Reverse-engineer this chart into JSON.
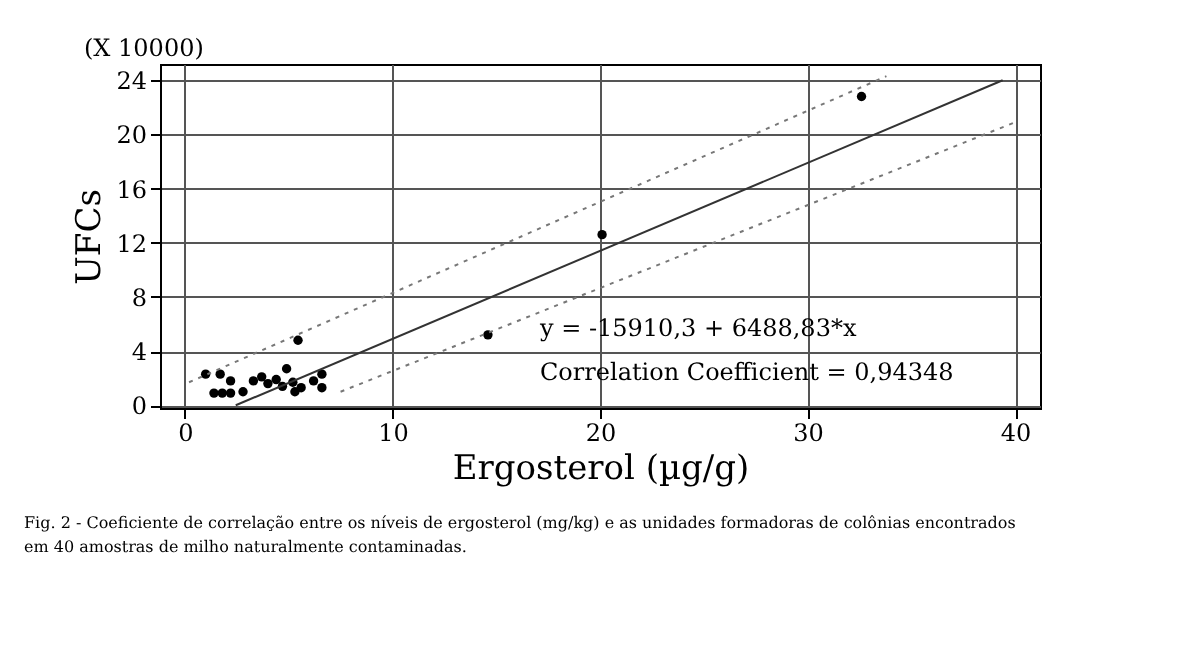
{
  "chart_data": {
    "type": "scatter",
    "xlabel": "Ergosterol (µg/g)",
    "ylabel": "UFCs",
    "xlim": [
      -1.2,
      41.2
    ],
    "ylim": [
      -0.2,
      25.2
    ],
    "xticks": [
      0,
      10,
      20,
      30,
      40
    ],
    "yticks": [
      0,
      4,
      8,
      12,
      16,
      20,
      24
    ],
    "grid": true,
    "marker": "circle",
    "series": [
      {
        "color": "#000000",
        "x": [
          1.0,
          1.7,
          2.2,
          1.4,
          1.8,
          2.2,
          2.8,
          3.3,
          3.7,
          4.0,
          4.4,
          4.9,
          4.7,
          5.2,
          5.3,
          5.6,
          5.45,
          6.2,
          6.6,
          6.6,
          14.6,
          20.1,
          32.6
        ],
        "values": [
          2.3,
          2.3,
          1.8,
          0.9,
          0.9,
          0.9,
          1.0,
          1.8,
          2.1,
          1.6,
          1.9,
          2.7,
          1.4,
          1.7,
          1.0,
          1.3,
          4.8,
          1.8,
          2.3,
          1.3,
          5.2,
          12.6,
          22.8
        ]
      },
      {
        "type": "line",
        "color": "#333333",
        "line_style": "solid",
        "marker": "none",
        "x": [
          2.45,
          39.4
        ],
        "values": [
          0.0,
          24.0
        ]
      },
      {
        "type": "line",
        "color": "#777777",
        "line_style": "dotted",
        "marker": "none",
        "x": [
          0.2,
          33.8
        ],
        "values": [
          1.7,
          24.3
        ]
      },
      {
        "type": "line",
        "color": "#777777",
        "line_style": "dotted",
        "marker": "none",
        "x": [
          7.5,
          40.0
        ],
        "values": [
          1.0,
          20.9
        ]
      }
    ],
    "annotations": [
      "(X 10000)",
      "y = -15910,3 + 6488,83*x",
      "Correlation Coefficient = 0,94348",
      "Fig. 2 - Coeficiente de correlação entre os níveis de ergosterol (mg/kg) e as unidades formadoras de colônias encontrados em 40 amostras de milho naturalmente contaminadas."
    ]
  }
}
